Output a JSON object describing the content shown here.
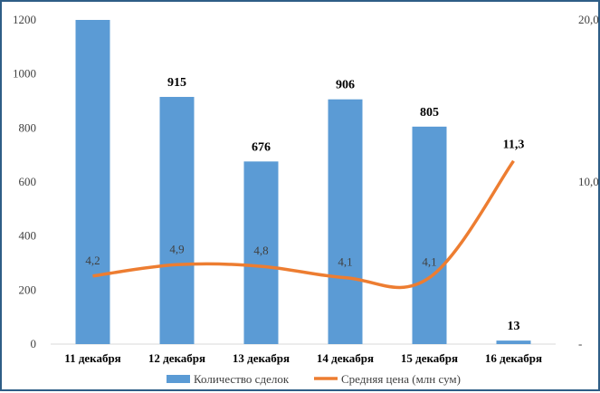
{
  "chart_data": {
    "type": "bar",
    "categories": [
      "11 декабря",
      "12 декабря",
      "13 декабря",
      "14 декабря",
      "15 декабря",
      "16 декабря"
    ],
    "series": [
      {
        "name": "Количество сделок",
        "type": "bar",
        "axis": "left",
        "color": "#5b9bd5",
        "values": [
          1200,
          915,
          676,
          906,
          805,
          13
        ],
        "labels": [
          "",
          "915",
          "676",
          "906",
          "805",
          "13"
        ]
      },
      {
        "name": "Средняя цена (млн сум)",
        "type": "line",
        "axis": "right",
        "color": "#ed7d31",
        "values": [
          4.2,
          4.9,
          4.8,
          4.1,
          4.1,
          11.3
        ],
        "labels": [
          "4,2",
          "4,9",
          "4,8",
          "4,1",
          "4,1",
          "11,3"
        ]
      }
    ],
    "y_left": {
      "ticks": [
        "0",
        "200",
        "400",
        "600",
        "800",
        "1000",
        "1200"
      ],
      "lim": [
        0,
        1200
      ]
    },
    "y_right": {
      "ticks": [
        "-",
        "10,0",
        "20,0"
      ],
      "lim": [
        0,
        20
      ]
    },
    "legend": "bottom",
    "grid": false
  }
}
